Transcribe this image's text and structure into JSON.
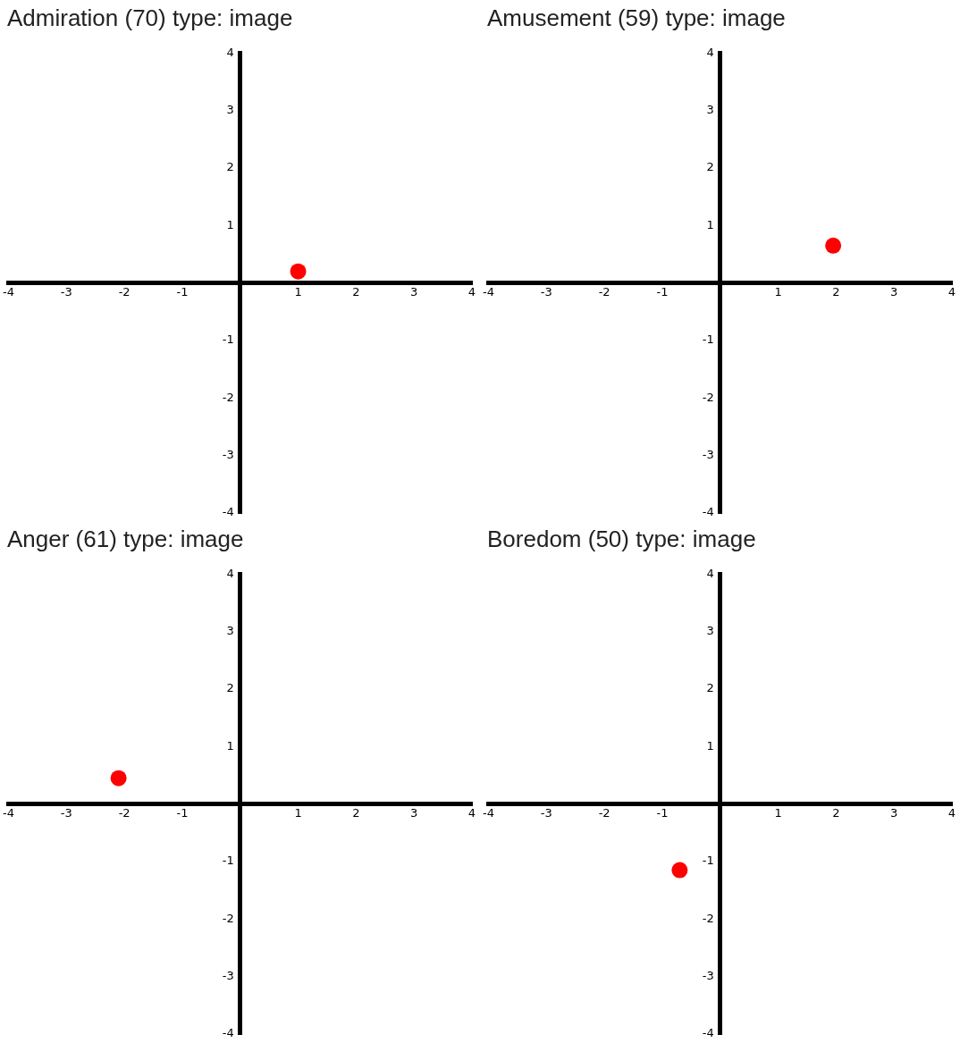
{
  "chart_data": [
    {
      "type": "scatter",
      "title": "Admiration (70) type: image",
      "x": [
        1.0
      ],
      "values": [
        0.2
      ],
      "color": "#ff0000",
      "marker": "circle",
      "xlim": [
        -4,
        4
      ],
      "ylim": [
        -4,
        4
      ],
      "xticks": [
        -4,
        -3,
        -2,
        -1,
        1,
        2,
        3,
        4
      ],
      "yticks": [
        -4,
        -3,
        -2,
        -1,
        1,
        2,
        3,
        4
      ]
    },
    {
      "type": "scatter",
      "title": "Amusement (59) type: image",
      "x": [
        1.95
      ],
      "values": [
        0.65
      ],
      "color": "#ff0000",
      "marker": "circle",
      "xlim": [
        -4,
        4
      ],
      "ylim": [
        -4,
        4
      ],
      "xticks": [
        -4,
        -3,
        -2,
        -1,
        1,
        2,
        3,
        4
      ],
      "yticks": [
        -4,
        -3,
        -2,
        -1,
        1,
        2,
        3,
        4
      ]
    },
    {
      "type": "scatter",
      "title": "Anger (61) type: image",
      "x": [
        -2.1
      ],
      "values": [
        0.45
      ],
      "color": "#ff0000",
      "marker": "circle",
      "xlim": [
        -4,
        4
      ],
      "ylim": [
        -4,
        4
      ],
      "xticks": [
        -4,
        -3,
        -2,
        -1,
        1,
        2,
        3,
        4
      ],
      "yticks": [
        -4,
        -3,
        -2,
        -1,
        1,
        2,
        3,
        4
      ]
    },
    {
      "type": "scatter",
      "title": "Boredom (50) type: image",
      "x": [
        -0.7
      ],
      "values": [
        -1.15
      ],
      "color": "#ff0000",
      "marker": "circle",
      "xlim": [
        -4,
        4
      ],
      "ylim": [
        -4,
        4
      ],
      "xticks": [
        -4,
        -3,
        -2,
        -1,
        1,
        2,
        3,
        4
      ],
      "yticks": [
        -4,
        -3,
        -2,
        -1,
        1,
        2,
        3,
        4
      ]
    }
  ]
}
